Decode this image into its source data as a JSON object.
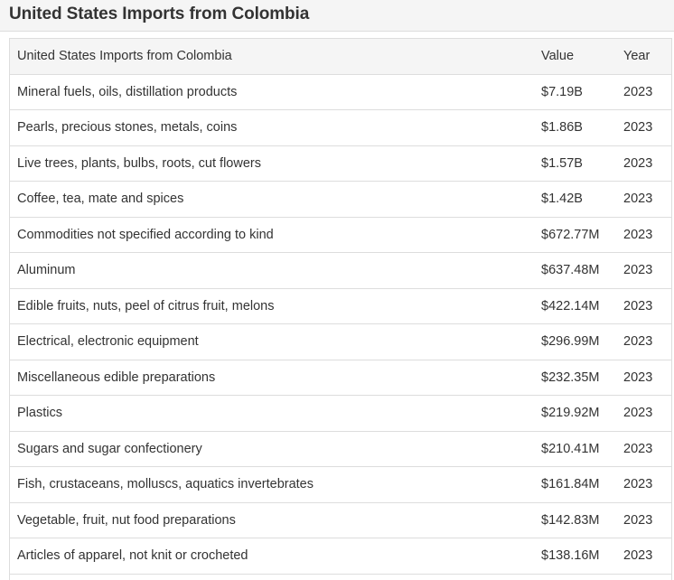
{
  "page": {
    "title": "United States Imports from Colombia"
  },
  "table": {
    "headers": {
      "name": "United States Imports from Colombia",
      "value": "Value",
      "year": "Year"
    },
    "rows": [
      {
        "name": "Mineral fuels, oils, distillation products",
        "value": "$7.19B",
        "year": "2023"
      },
      {
        "name": "Pearls, precious stones, metals, coins",
        "value": "$1.86B",
        "year": "2023"
      },
      {
        "name": "Live trees, plants, bulbs, roots, cut flowers",
        "value": "$1.57B",
        "year": "2023"
      },
      {
        "name": "Coffee, tea, mate and spices",
        "value": "$1.42B",
        "year": "2023"
      },
      {
        "name": "Commodities not specified according to kind",
        "value": "$672.77M",
        "year": "2023"
      },
      {
        "name": "Aluminum",
        "value": "$637.48M",
        "year": "2023"
      },
      {
        "name": "Edible fruits, nuts, peel of citrus fruit, melons",
        "value": "$422.14M",
        "year": "2023"
      },
      {
        "name": "Electrical, electronic equipment",
        "value": "$296.99M",
        "year": "2023"
      },
      {
        "name": "Miscellaneous edible preparations",
        "value": "$232.35M",
        "year": "2023"
      },
      {
        "name": "Plastics",
        "value": "$219.92M",
        "year": "2023"
      },
      {
        "name": "Sugars and sugar confectionery",
        "value": "$210.41M",
        "year": "2023"
      },
      {
        "name": "Fish, crustaceans, molluscs, aquatics invertebrates",
        "value": "$161.84M",
        "year": "2023"
      },
      {
        "name": "Vegetable, fruit, nut food preparations",
        "value": "$142.83M",
        "year": "2023"
      },
      {
        "name": "Articles of apparel, not knit or crocheted",
        "value": "$138.16M",
        "year": "2023"
      }
    ]
  },
  "colors": {
    "header_bg": "#f5f5f5",
    "border": "#dddddd",
    "text": "#333333"
  }
}
